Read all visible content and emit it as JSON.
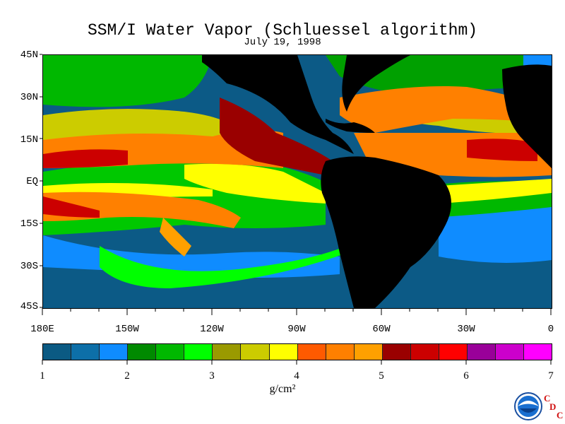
{
  "header": {
    "title": "SSM/I Water Vapor (Schluessel algorithm)",
    "date": "July 19, 1998"
  },
  "map": {
    "lat_labels": [
      "45N",
      "30N",
      "15N",
      "EQ",
      "15S",
      "30S",
      "45S"
    ],
    "lon_labels": [
      "180E",
      "150W",
      "120W",
      "90W",
      "60W",
      "30W",
      "0"
    ],
    "land_color": "#000000"
  },
  "colorbar": {
    "colors": [
      "#0b5a83",
      "#0d6fa8",
      "#0f8cff",
      "#008a00",
      "#00b800",
      "#00ff00",
      "#9a9a00",
      "#cccc00",
      "#ffff00",
      "#ff5a00",
      "#ff8000",
      "#ffa000",
      "#9a0000",
      "#cc0000",
      "#ff0000",
      "#990099",
      "#cc00cc",
      "#ff00ff"
    ],
    "labels": [
      "1",
      "2",
      "3",
      "4",
      "5",
      "6",
      "7"
    ],
    "unit": "g/cm²"
  },
  "logo": {
    "name": "NOAA",
    "cdc_letters": [
      "C",
      "D",
      "C"
    ]
  }
}
